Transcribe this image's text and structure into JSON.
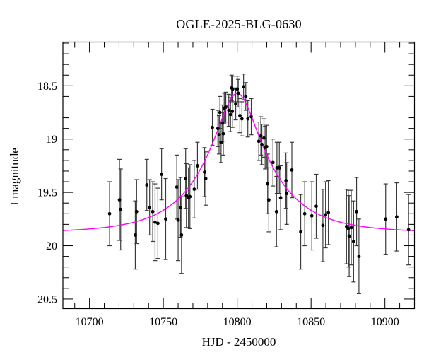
{
  "figure": {
    "background": "#ffffff"
  },
  "chart_data": {
    "type": "scatter",
    "title": "OGLE-2025-BLG-0630",
    "xlabel": "HJD - 2450000",
    "ylabel": "I magnitude",
    "x_range": [
      10682,
      10920
    ],
    "y_range_mag": [
      18.09,
      20.59
    ],
    "y_axis_inverted": true,
    "grid": false,
    "legend": "none",
    "x_major_ticks": [
      10700,
      10750,
      10800,
      10850,
      10900
    ],
    "x_minor_tick_step": 10,
    "y_major_ticks": [
      18.5,
      19.0,
      19.5,
      20.0,
      20.5
    ],
    "y_tick_labels": [
      "18.5",
      "19",
      "19.5",
      "20",
      "20.5"
    ],
    "y_minor_tick_step": 0.1,
    "colors": {
      "points": "#000000",
      "error_bars": "#3a3a3a",
      "model_curve": "#ff00ff",
      "frame": "#000000",
      "text": "#000000"
    },
    "model": {
      "type": "paczynski-microlensing",
      "I0_baseline_mag": 19.88,
      "t0_peak": 10800,
      "u0": 0.31,
      "tE_days": 42,
      "peak_mag": 18.6
    },
    "points_format": [
      "hjd_minus_2450000",
      "I_mag",
      "err_mag"
    ],
    "points": [
      [
        10713.6,
        19.7,
        0.3
      ],
      [
        10720.3,
        19.57,
        0.38
      ],
      [
        10721.1,
        19.66,
        0.38
      ],
      [
        10731.0,
        19.9,
        0.32
      ],
      [
        10731.9,
        19.68,
        0.3
      ],
      [
        10738.8,
        19.43,
        0.24
      ],
      [
        10740.7,
        19.64,
        0.26
      ],
      [
        10742.8,
        19.68,
        0.28
      ],
      [
        10744.4,
        19.78,
        0.36
      ],
      [
        10746.3,
        19.79,
        0.33
      ],
      [
        10748.8,
        19.33,
        0.24
      ],
      [
        10751.6,
        19.75,
        0.38
      ],
      [
        10759.1,
        19.45,
        0.3
      ],
      [
        10760.0,
        19.76,
        0.38
      ],
      [
        10761.6,
        19.64,
        0.28
      ],
      [
        10762.3,
        19.9,
        0.36
      ],
      [
        10765.1,
        19.37,
        0.28
      ],
      [
        10765.6,
        19.53,
        0.3
      ],
      [
        10767.0,
        19.55,
        0.28
      ],
      [
        10768.0,
        19.54,
        0.3
      ],
      [
        10770.9,
        19.47,
        0.27
      ],
      [
        10773.1,
        19.25,
        0.22
      ],
      [
        10777.9,
        19.31,
        0.23
      ],
      [
        10778.7,
        19.37,
        0.25
      ],
      [
        10783.2,
        18.89,
        0.17
      ],
      [
        10786.9,
        18.9,
        0.17
      ],
      [
        10787.7,
        18.96,
        0.18
      ],
      [
        10788.3,
        18.75,
        0.15
      ],
      [
        10789.1,
        19.03,
        0.19
      ],
      [
        10790.0,
        18.85,
        0.17
      ],
      [
        10790.6,
        18.95,
        0.2
      ],
      [
        10791.2,
        18.71,
        0.14
      ],
      [
        10792.3,
        18.7,
        0.14
      ],
      [
        10794.3,
        18.73,
        0.15
      ],
      [
        10795.5,
        18.77,
        0.16
      ],
      [
        10796.2,
        18.52,
        0.12
      ],
      [
        10796.7,
        18.74,
        0.15
      ],
      [
        10797.0,
        18.53,
        0.12
      ],
      [
        10799.0,
        18.67,
        0.15
      ],
      [
        10800.0,
        18.53,
        0.12
      ],
      [
        10800.7,
        18.57,
        0.13
      ],
      [
        10801.8,
        18.78,
        0.16
      ],
      [
        10803.2,
        18.81,
        0.16
      ],
      [
        10804.3,
        18.51,
        0.12
      ],
      [
        10805.8,
        18.6,
        0.13
      ],
      [
        10807.2,
        18.81,
        0.17
      ],
      [
        10809.5,
        18.79,
        0.17
      ],
      [
        10814.6,
        19.02,
        0.18
      ],
      [
        10816.0,
        18.97,
        0.18
      ],
      [
        10816.7,
        19.05,
        0.19
      ],
      [
        10818.1,
        18.99,
        0.18
      ],
      [
        10818.9,
        19.08,
        0.2
      ],
      [
        10819.9,
        19.07,
        0.2
      ],
      [
        10820.6,
        19.42,
        0.28
      ],
      [
        10821.4,
        19.57,
        0.3
      ],
      [
        10824.2,
        19.22,
        0.22
      ],
      [
        10826.6,
        19.68,
        0.33
      ],
      [
        10826.9,
        19.27,
        0.24
      ],
      [
        10828.5,
        19.27,
        0.24
      ],
      [
        10829.4,
        19.55,
        0.3
      ],
      [
        10833.0,
        19.39,
        0.26
      ],
      [
        10833.5,
        19.51,
        0.29
      ],
      [
        10837.0,
        19.29,
        0.26
      ],
      [
        10843.0,
        19.87,
        0.35
      ],
      [
        10845.7,
        19.7,
        0.3
      ],
      [
        10850.5,
        19.72,
        0.32
      ],
      [
        10853.5,
        19.63,
        0.3
      ],
      [
        10858.0,
        19.81,
        0.34
      ],
      [
        10859.8,
        19.71,
        0.31
      ],
      [
        10861.7,
        19.69,
        0.3
      ],
      [
        10874.0,
        19.82,
        0.35
      ],
      [
        10875.2,
        19.84,
        0.36
      ],
      [
        10875.8,
        19.91,
        0.38
      ],
      [
        10877.2,
        19.83,
        0.35
      ],
      [
        10878.8,
        19.96,
        0.38
      ],
      [
        10880.8,
        19.68,
        0.32
      ],
      [
        10882.4,
        20.1,
        0.35
      ],
      [
        10900.5,
        19.75,
        0.33
      ],
      [
        10908.0,
        19.73,
        0.32
      ],
      [
        10916.0,
        19.85,
        0.33
      ]
    ]
  }
}
